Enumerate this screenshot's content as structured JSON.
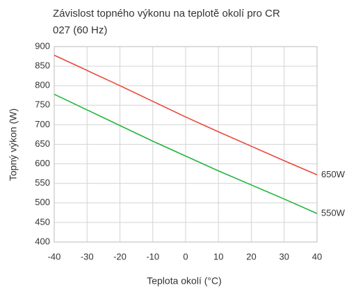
{
  "chart_data": {
    "type": "line",
    "title": "Závislost topného výkonu na teplotě okolí pro CR 027 (60 Hz)",
    "x_label": "Teplota okolí (°C)",
    "y_label": "Topný výkon (W)",
    "x": [
      -40,
      -30,
      -20,
      -10,
      0,
      10,
      20,
      30,
      40
    ],
    "series": [
      {
        "name": "650W",
        "color": "#e8483a",
        "values": [
          878,
          839,
          800,
          760,
          720,
          682,
          645,
          608,
          572
        ]
      },
      {
        "name": "550W",
        "color": "#22b53c",
        "values": [
          778,
          738,
          698,
          658,
          620,
          582,
          546,
          510,
          473
        ]
      }
    ],
    "xlim": [
      -40,
      40
    ],
    "xticks": [
      -40,
      -30,
      -20,
      -10,
      0,
      10,
      20,
      30,
      40
    ],
    "ylim": [
      400,
      900
    ],
    "yticks": [
      400,
      450,
      500,
      550,
      600,
      650,
      700,
      750,
      800,
      850,
      900
    ],
    "grid": true
  }
}
